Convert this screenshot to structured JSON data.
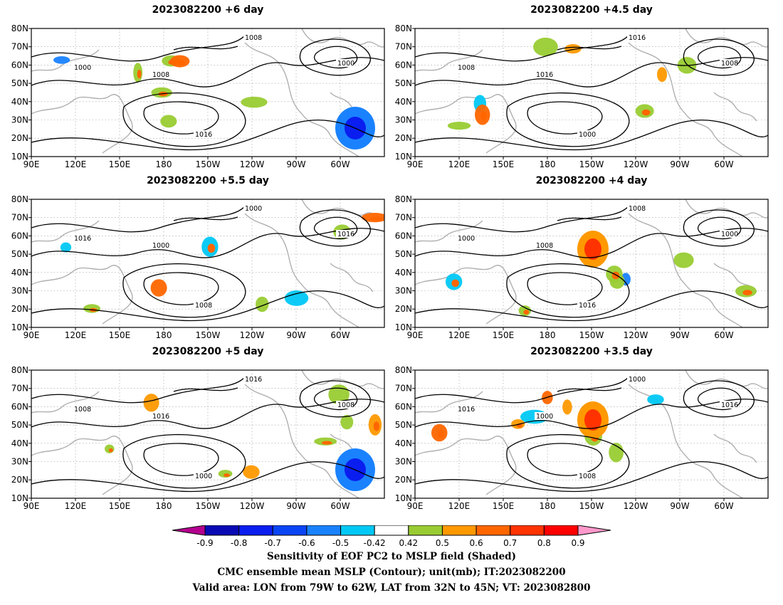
{
  "panels": [
    {
      "title": "2023082200  +6 day"
    },
    {
      "title": "2023082200  +4.5  day"
    },
    {
      "title": "2023082200  +5.5  day"
    },
    {
      "title": "2023082200  +4  day"
    },
    {
      "title": "2023082200  +5  day"
    },
    {
      "title": "2023082200  +3.5  day"
    }
  ],
  "lat_labels": [
    "80N",
    "70N",
    "60N",
    "50N",
    "40N",
    "30N",
    "20N",
    "10N"
  ],
  "lon_labels": [
    "90E",
    "120E",
    "150E",
    "180",
    "150W",
    "120W",
    "90W",
    "60W"
  ],
  "contour_labels": [
    "1000",
    "1008",
    "1016"
  ],
  "colorbar": {
    "colors": [
      "#b5008f",
      "#0a0ab5",
      "#0a1ef0",
      "#0a45f5",
      "#1a82ff",
      "#00c8f5",
      "#ffffff",
      "#99cc33",
      "#ff9900",
      "#ff6600",
      "#ff3300",
      "#ff0000",
      "#ff99cc"
    ],
    "labels": [
      "-0.9",
      "-0.8",
      "-0.7",
      "-0.6",
      "-0.5",
      "-0.42",
      "0.42",
      "0.5",
      "0.6",
      "0.7",
      "0.8",
      "0.9"
    ]
  },
  "footer": [
    "Sensitivity of EOF PC2 to MSLP field (Shaded)",
    "CMC ensemble mean MSLP (Contour); unit(mb); IT:2023082200",
    "Valid area: LON from 79W to 62W, LAT from 32N to 45N; VT: 2023082800"
  ]
}
